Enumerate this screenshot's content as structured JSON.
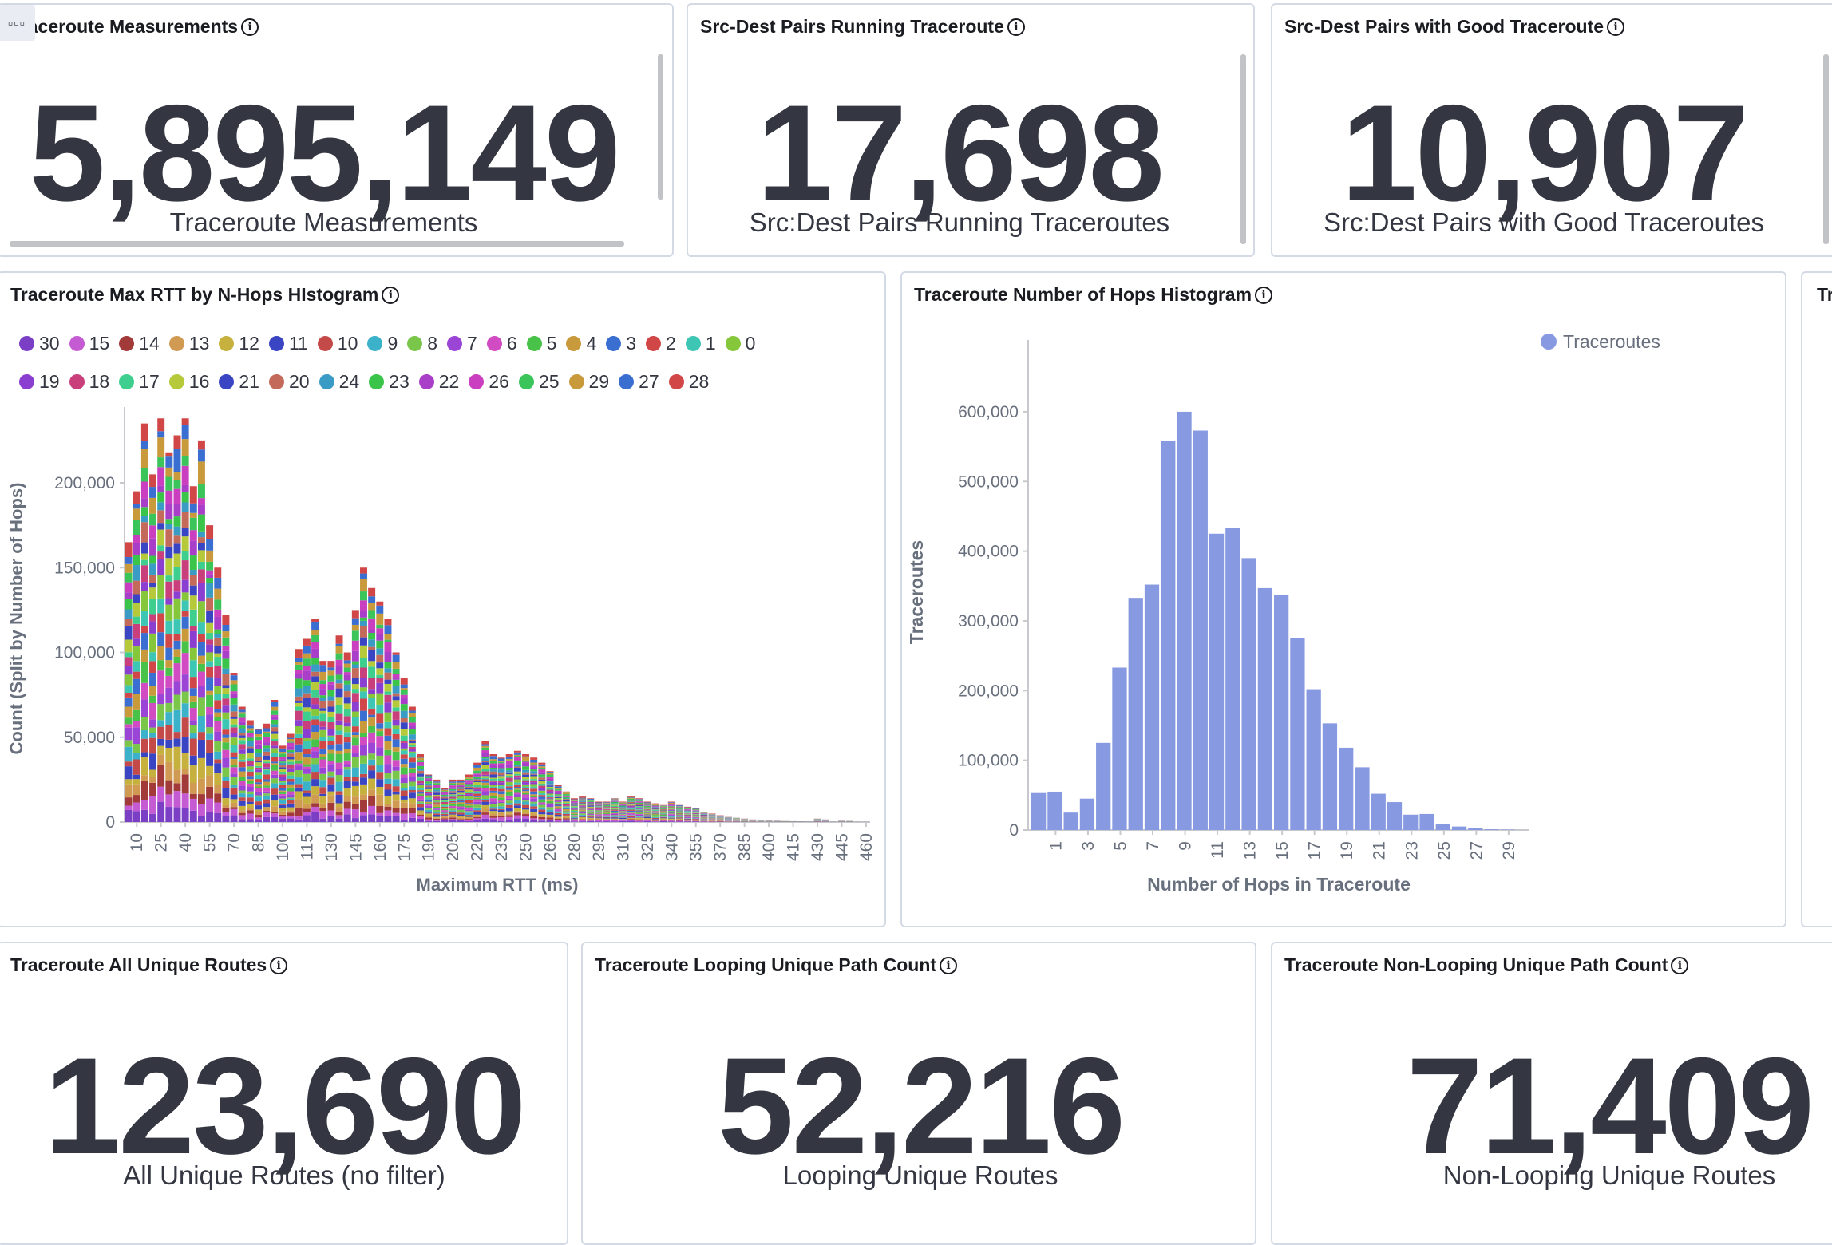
{
  "panels": {
    "traceroute_measurements": {
      "title": "Traceroute Measurements",
      "value": "5,895,149",
      "label": "Traceroute Measurements",
      "menu_icon": "ellipsis-icon"
    },
    "running_pairs": {
      "title": "Src-Dest Pairs Running Traceroute",
      "value": "17,698",
      "label": "Src:Dest Pairs Running Traceroutes"
    },
    "good_pairs": {
      "title": "Src-Dest Pairs with Good Traceroute",
      "value": "10,907",
      "label": "Src:Dest Pairs with Good Traceroutes"
    },
    "rtt_histogram": {
      "title": "Traceroute Max RTT by N-Hops HIstogram"
    },
    "hops_histogram": {
      "title": "Traceroute Number of Hops Histogram"
    },
    "clipped_panel": {
      "title": "Tr"
    },
    "all_unique_routes": {
      "title": "Traceroute All Unique Routes",
      "value": "123,690",
      "label": "All Unique Routes (no filter)"
    },
    "looping_paths": {
      "title": "Traceroute Looping Unique Path Count",
      "value": "52,216",
      "label": "Looping Unique Routes"
    },
    "non_looping_paths": {
      "title": "Traceroute Non-Looping Unique Path Count",
      "value": "71,409",
      "label": "Non-Looping Unique Routes"
    }
  },
  "info_icon": "i",
  "chart_data": [
    {
      "type": "bar",
      "stacked": true,
      "title": "Traceroute Max RTT by N-Hops HIstogram",
      "xlabel": "Maximum RTT (ms)",
      "ylabel": "Count (Split by Number of Hops)",
      "ylim": [
        0,
        240000
      ],
      "yticks": [
        0,
        50000,
        100000,
        150000,
        200000
      ],
      "ytick_labels": [
        "0",
        "50,000",
        "100,000",
        "150,000",
        "200,000"
      ],
      "xtick_labels": [
        "10",
        "25",
        "40",
        "55",
        "70",
        "85",
        "100",
        "115",
        "130",
        "145",
        "160",
        "175",
        "190",
        "205",
        "220",
        "235",
        "250",
        "265",
        "280",
        "295",
        "310",
        "325",
        "340",
        "355",
        "370",
        "385",
        "400",
        "415",
        "430",
        "445",
        "460"
      ],
      "bin_width_ms": 5,
      "bin_start_ms": 5,
      "legend_position": "top",
      "series_names": [
        "30",
        "15",
        "14",
        "13",
        "12",
        "11",
        "10",
        "9",
        "8",
        "7",
        "6",
        "5",
        "4",
        "3",
        "2",
        "1",
        "0",
        "19",
        "18",
        "17",
        "16",
        "21",
        "20",
        "24",
        "23",
        "22",
        "26",
        "25",
        "29",
        "27",
        "28"
      ],
      "series_colors": [
        "#7b3fc6",
        "#c45bd2",
        "#a23a3a",
        "#d19a52",
        "#c6b13e",
        "#3a45c4",
        "#c44a4a",
        "#3bb2c9",
        "#7ac64a",
        "#9b45d6",
        "#d14bc2",
        "#49c24a",
        "#c99a3b",
        "#3a6fd1",
        "#d14747",
        "#3ec6b4",
        "#86c63a",
        "#8b3fd1",
        "#c93f7b",
        "#3ecf8e",
        "#b5c93b",
        "#3a45c4",
        "#c46a5a",
        "#3a9bc4",
        "#3bc44a",
        "#a93fc9",
        "#c93fbf",
        "#3bc45a",
        "#c99a3b",
        "#3a6fd1",
        "#d14747"
      ],
      "totals": [
        165000,
        195000,
        235000,
        205000,
        238000,
        218000,
        228000,
        238000,
        198000,
        225000,
        175000,
        150000,
        122000,
        88000,
        68000,
        60000,
        55000,
        58000,
        72000,
        45000,
        52000,
        102000,
        108000,
        120000,
        95000,
        95000,
        110000,
        100000,
        125000,
        150000,
        138000,
        130000,
        120000,
        100000,
        85000,
        68000,
        40000,
        28000,
        25000,
        20000,
        25000,
        25000,
        28000,
        35000,
        48000,
        40000,
        38000,
        40000,
        42000,
        40000,
        38000,
        35000,
        30000,
        22000,
        18000,
        14000,
        15000,
        14000,
        12000,
        12000,
        14000,
        12000,
        15000,
        14000,
        12000,
        11000,
        10000,
        12000,
        10000,
        9000,
        8000,
        6000,
        5000,
        4000,
        3000,
        2500,
        2000,
        1500,
        1200,
        1000,
        800,
        600,
        500,
        400,
        300,
        2000,
        1500,
        200,
        800,
        700,
        100,
        100
      ]
    },
    {
      "type": "bar",
      "title": "Traceroute Number of Hops Histogram",
      "xlabel": "Number of Hops in Traceroute",
      "ylabel": "Traceroutes",
      "ylim": [
        0,
        600000
      ],
      "yticks": [
        0,
        100000,
        200000,
        300000,
        400000,
        500000,
        600000
      ],
      "ytick_labels": [
        "0",
        "100,000",
        "200,000",
        "300,000",
        "400,000",
        "500,000",
        "600,000"
      ],
      "xtick_labels": [
        "1",
        "3",
        "5",
        "7",
        "9",
        "11",
        "13",
        "15",
        "17",
        "19",
        "21",
        "23",
        "25",
        "27",
        "29"
      ],
      "series": [
        {
          "name": "Traceroutes",
          "color": "#8799e0",
          "x": [
            0,
            1,
            2,
            3,
            4,
            5,
            6,
            7,
            8,
            9,
            10,
            11,
            12,
            13,
            14,
            15,
            16,
            17,
            18,
            19,
            20,
            21,
            22,
            23,
            24,
            25,
            26,
            27,
            28,
            29
          ],
          "values": [
            53000,
            55000,
            25000,
            45000,
            125000,
            233000,
            333000,
            352000,
            558000,
            600000,
            573000,
            425000,
            433000,
            390000,
            347000,
            337000,
            275000,
            202000,
            153000,
            118000,
            90000,
            52000,
            40000,
            22000,
            23000,
            8000,
            5000,
            3000,
            1000,
            500
          ]
        }
      ],
      "legend_position": "top-right"
    }
  ]
}
